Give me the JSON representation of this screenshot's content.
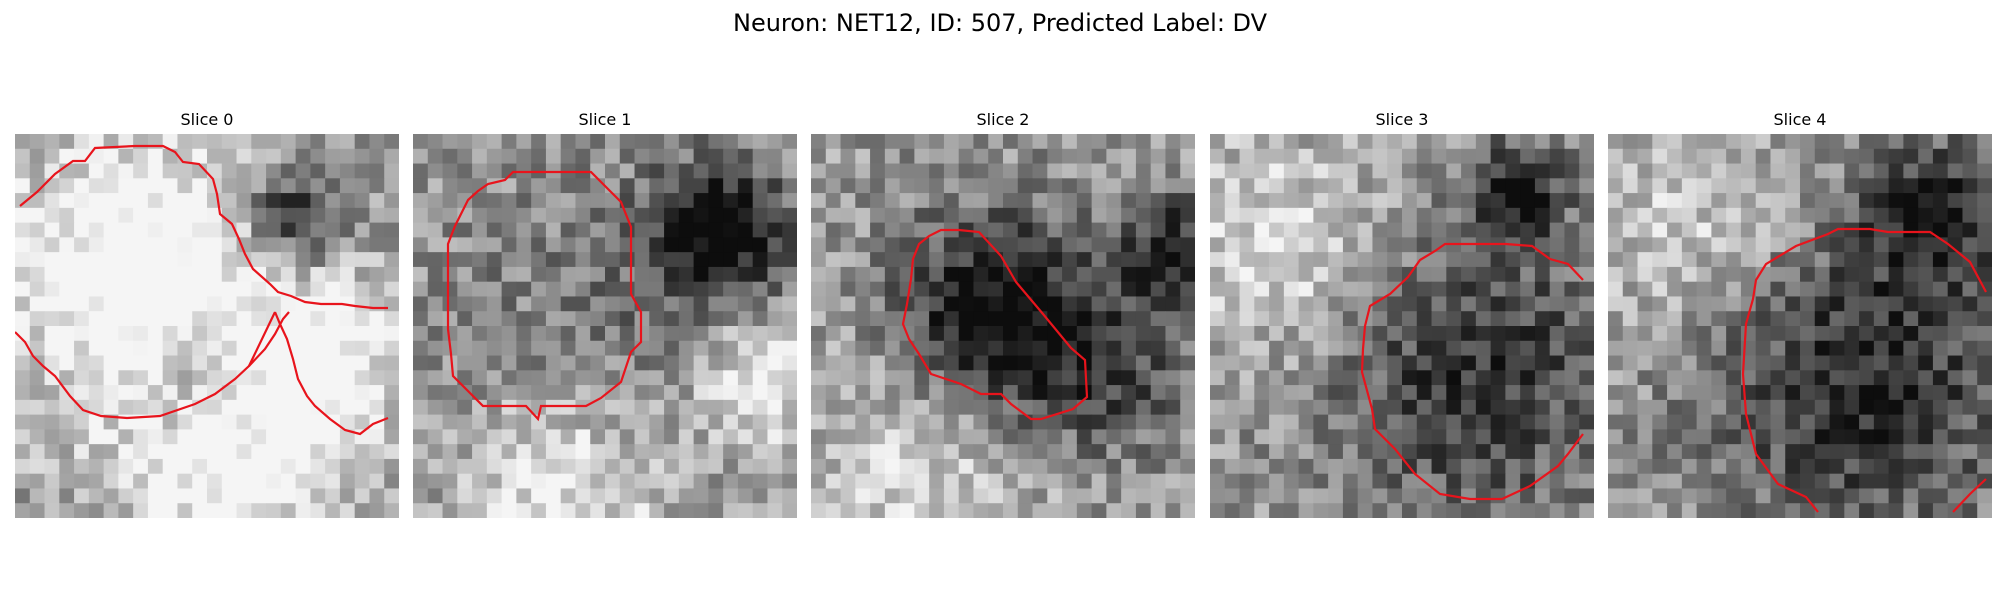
{
  "figure": {
    "title": "Neuron: NET12, ID: 507, Predicted Label: DV",
    "colormap": "gray",
    "contour_color": "#e8141c",
    "panels": [
      {
        "title": "Slice 0",
        "seed": 11,
        "blobs": [
          [
            0.35,
            0.38,
            0.28,
            0.55
          ],
          [
            0.78,
            0.62,
            0.16,
            0.45
          ],
          [
            0.72,
            0.22,
            0.1,
            -0.55
          ],
          [
            0.48,
            0.62,
            0.12,
            -0.35
          ],
          [
            0.55,
            0.92,
            0.18,
            0.35
          ]
        ]
      },
      {
        "title": "Slice 1",
        "seed": 23,
        "blobs": [
          [
            0.5,
            0.52,
            0.3,
            -0.15
          ],
          [
            0.8,
            0.25,
            0.12,
            -0.6
          ],
          [
            0.9,
            0.65,
            0.12,
            0.4
          ],
          [
            0.4,
            0.92,
            0.2,
            0.35
          ]
        ]
      },
      {
        "title": "Slice 2",
        "seed": 37,
        "blobs": [
          [
            0.48,
            0.48,
            0.18,
            -0.65
          ],
          [
            0.78,
            0.62,
            0.16,
            -0.3
          ],
          [
            0.95,
            0.3,
            0.1,
            -0.45
          ],
          [
            0.3,
            0.85,
            0.22,
            0.25
          ]
        ]
      },
      {
        "title": "Slice 3",
        "seed": 41,
        "blobs": [
          [
            0.68,
            0.62,
            0.28,
            -0.4
          ],
          [
            0.8,
            0.15,
            0.08,
            -0.55
          ],
          [
            0.2,
            0.3,
            0.2,
            0.3
          ]
        ]
      },
      {
        "title": "Slice 4",
        "seed": 53,
        "blobs": [
          [
            0.65,
            0.62,
            0.3,
            -0.45
          ],
          [
            0.85,
            0.2,
            0.12,
            -0.45
          ],
          [
            0.25,
            0.25,
            0.22,
            0.25
          ]
        ]
      }
    ]
  }
}
